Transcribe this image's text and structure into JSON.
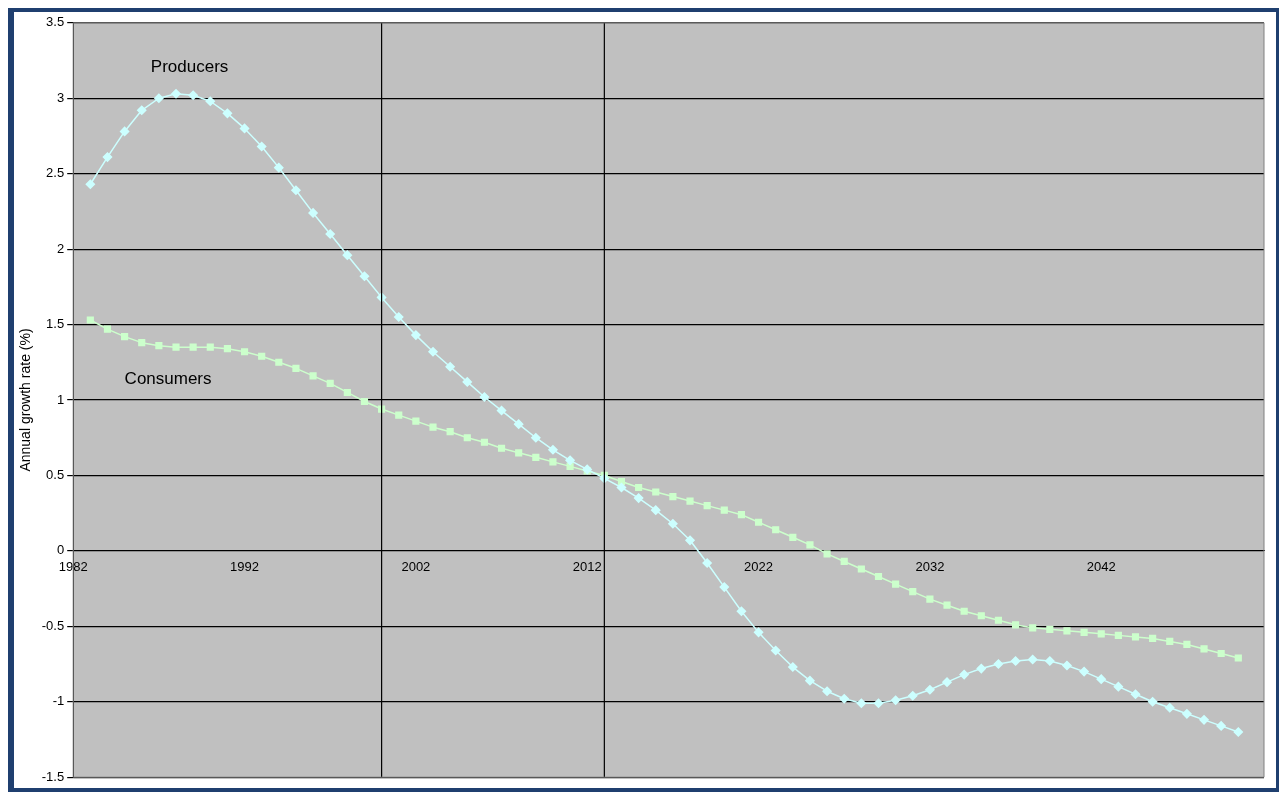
{
  "chart_data": {
    "type": "line",
    "ylabel": "Annual growth rate (%)",
    "x": [
      1983,
      1984,
      1985,
      1986,
      1987,
      1988,
      1989,
      1990,
      1991,
      1992,
      1993,
      1994,
      1995,
      1996,
      1997,
      1998,
      1999,
      2000,
      2001,
      2002,
      2003,
      2004,
      2005,
      2006,
      2007,
      2008,
      2009,
      2010,
      2011,
      2012,
      2013,
      2014,
      2015,
      2016,
      2017,
      2018,
      2019,
      2020,
      2021,
      2022,
      2023,
      2024,
      2025,
      2026,
      2027,
      2028,
      2029,
      2030,
      2031,
      2032,
      2033,
      2034,
      2035,
      2036,
      2037,
      2038,
      2039,
      2040,
      2041,
      2042,
      2043,
      2044,
      2045,
      2046,
      2047,
      2048,
      2049,
      2050
    ],
    "series": [
      {
        "name": "Producers",
        "color": "#ccffff",
        "marker": "diamond",
        "values": [
          2.43,
          2.61,
          2.78,
          2.92,
          3.0,
          3.03,
          3.02,
          2.98,
          2.9,
          2.8,
          2.68,
          2.54,
          2.39,
          2.24,
          2.1,
          1.96,
          1.82,
          1.68,
          1.55,
          1.43,
          1.32,
          1.22,
          1.12,
          1.02,
          0.93,
          0.84,
          0.75,
          0.67,
          0.6,
          0.54,
          0.48,
          0.42,
          0.35,
          0.27,
          0.18,
          0.07,
          -0.08,
          -0.24,
          -0.4,
          -0.54,
          -0.66,
          -0.77,
          -0.86,
          -0.93,
          -0.98,
          -1.01,
          -1.01,
          -0.99,
          -0.96,
          -0.92,
          -0.87,
          -0.82,
          -0.78,
          -0.75,
          -0.73,
          -0.72,
          -0.73,
          -0.76,
          -0.8,
          -0.85,
          -0.9,
          -0.95,
          -1.0,
          -1.04,
          -1.08,
          -1.12,
          -1.16,
          -1.2
        ]
      },
      {
        "name": "Consumers",
        "color": "#ccffcc",
        "marker": "square",
        "values": [
          1.53,
          1.47,
          1.42,
          1.38,
          1.36,
          1.35,
          1.35,
          1.35,
          1.34,
          1.32,
          1.29,
          1.25,
          1.21,
          1.16,
          1.11,
          1.05,
          0.99,
          0.94,
          0.9,
          0.86,
          0.82,
          0.79,
          0.75,
          0.72,
          0.68,
          0.65,
          0.62,
          0.59,
          0.56,
          0.53,
          0.5,
          0.46,
          0.42,
          0.39,
          0.36,
          0.33,
          0.3,
          0.27,
          0.24,
          0.19,
          0.14,
          0.09,
          0.04,
          -0.02,
          -0.07,
          -0.12,
          -0.17,
          -0.22,
          -0.27,
          -0.32,
          -0.36,
          -0.4,
          -0.43,
          -0.46,
          -0.49,
          -0.51,
          -0.52,
          -0.53,
          -0.54,
          -0.55,
          -0.56,
          -0.57,
          -0.58,
          -0.6,
          -0.62,
          -0.65,
          -0.68,
          -0.71
        ]
      }
    ],
    "xlim": [
      1982,
      2051.5
    ],
    "xticks": [
      1982,
      1992,
      2002,
      2012,
      2022,
      2032,
      2042
    ],
    "ylim": [
      -1.5,
      3.5
    ],
    "yticks": [
      -1.5,
      -1,
      -0.5,
      0,
      0.5,
      1,
      1.5,
      2,
      2.5,
      3,
      3.5
    ],
    "grid": "y",
    "legend": false,
    "line_style": "solid",
    "ref_lines": [
      {
        "axis": "x",
        "value": 2000,
        "color": "#000000"
      },
      {
        "axis": "x",
        "value": 2013,
        "color": "#000000"
      }
    ]
  }
}
